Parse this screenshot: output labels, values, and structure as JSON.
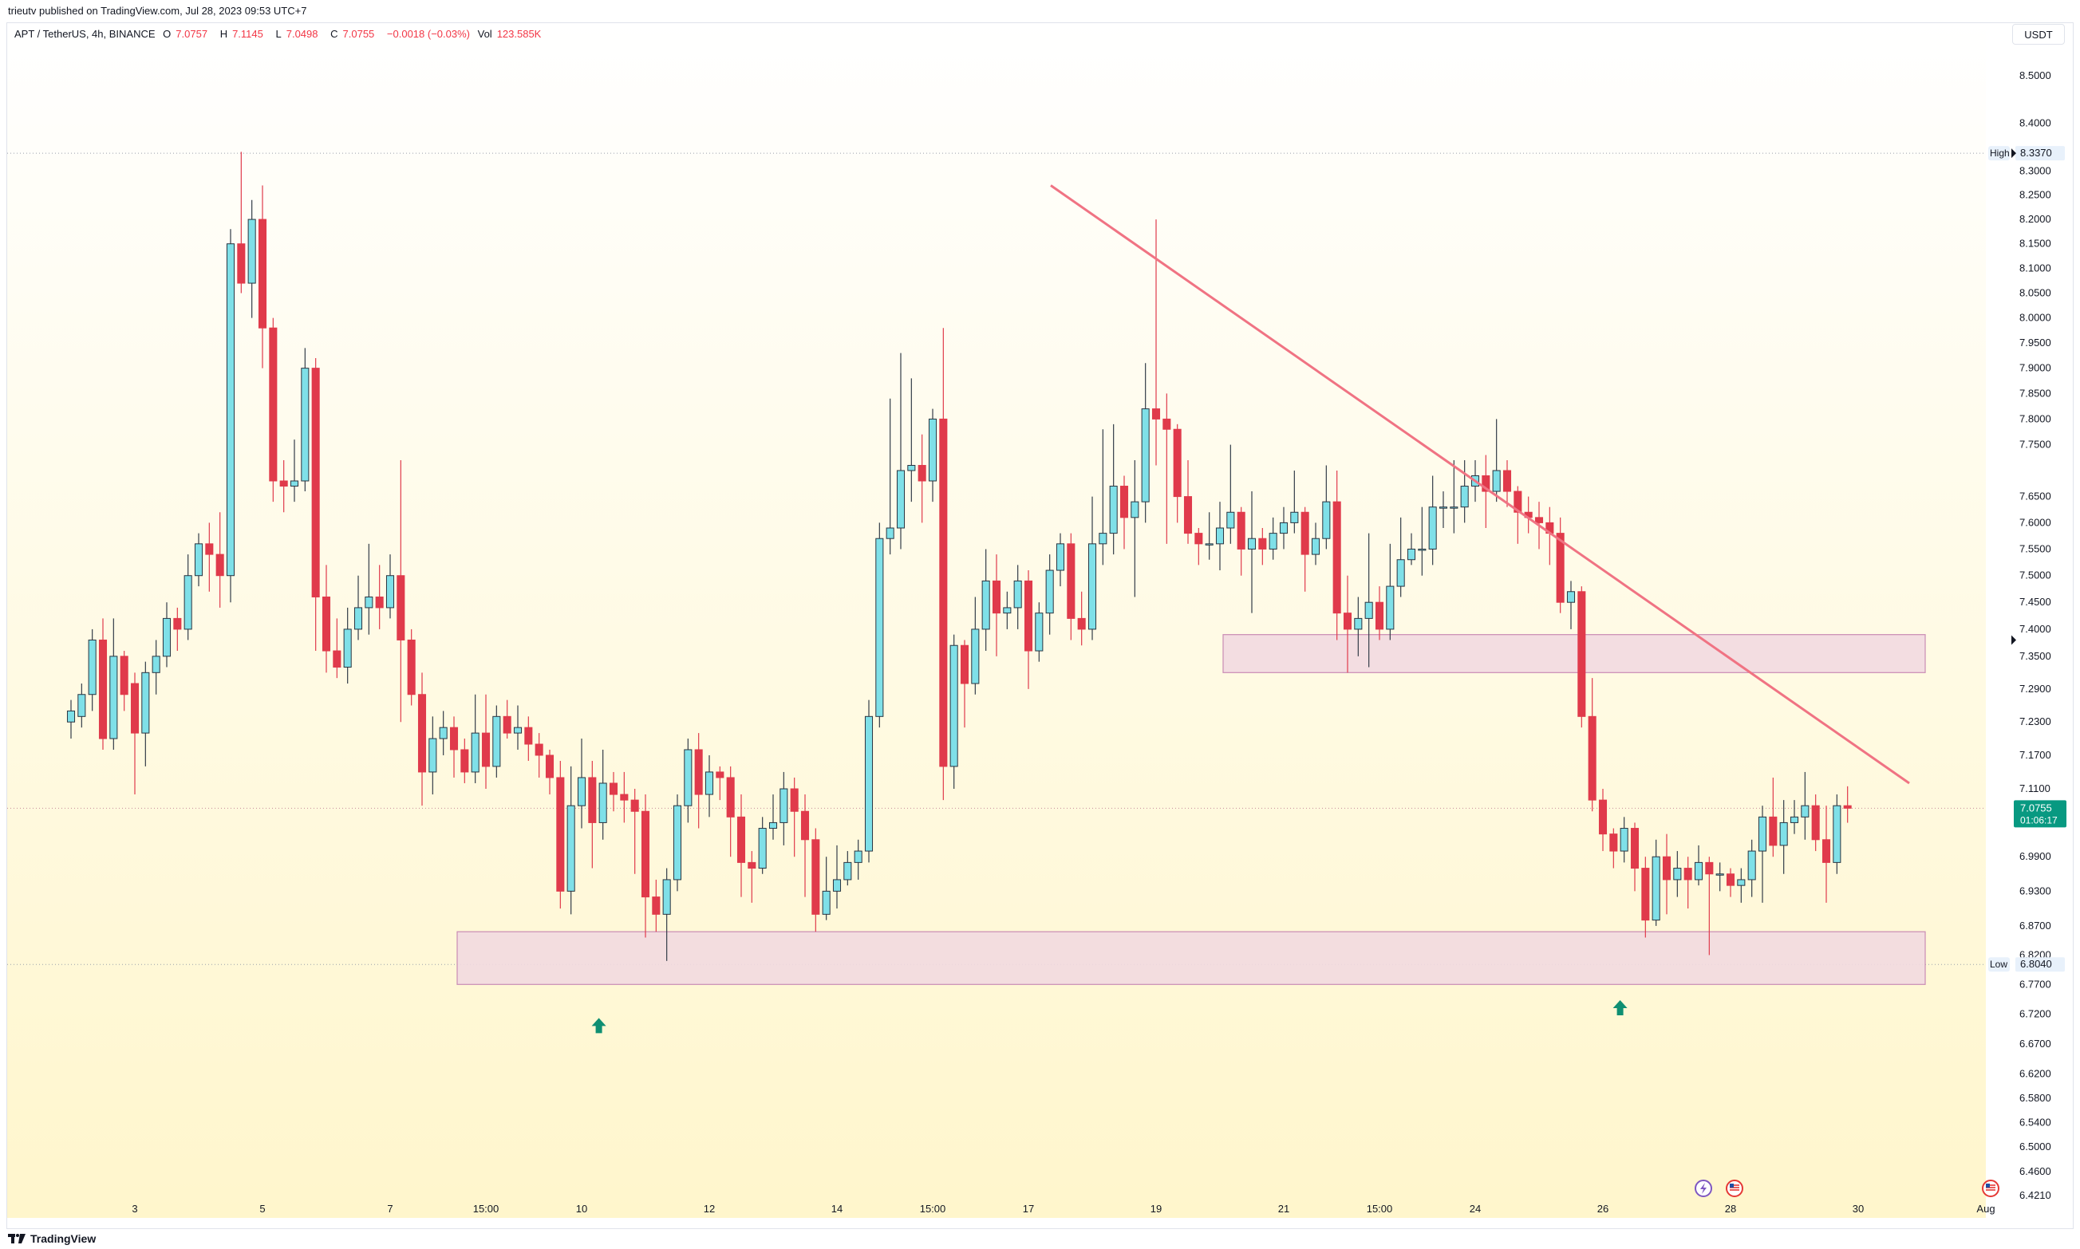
{
  "header": {
    "published": "trieutv published on TradingView.com, Jul 28, 2023 09:53 UTC+7"
  },
  "legend": {
    "symbol": "APT / TetherUS, 4h, BINANCE",
    "open_label": "O",
    "open": "7.0757",
    "high_label": "H",
    "high": "7.1145",
    "low_label": "L",
    "low": "7.0498",
    "close_label": "C",
    "close": "7.0755",
    "change": "−0.0018 (−0.03%)",
    "vol_label": "Vol",
    "vol": "123.585K"
  },
  "price_axis": {
    "currency_button": "USDT",
    "ticks": [
      "8.5000",
      "8.4000",
      "8.3000",
      "8.2500",
      "8.2000",
      "8.1500",
      "8.1000",
      "8.0500",
      "8.0000",
      "7.9500",
      "7.9000",
      "7.8500",
      "7.8000",
      "7.7500",
      "7.6500",
      "7.6000",
      "7.5500",
      "7.5000",
      "7.4500",
      "7.4000",
      "7.3500",
      "7.2900",
      "7.2300",
      "7.1700",
      "7.1100",
      "6.9900",
      "6.9300",
      "6.8700",
      "6.8200",
      "6.7700",
      "6.7200",
      "6.6700",
      "6.6200",
      "6.5800",
      "6.5400",
      "6.5000",
      "6.4600",
      "6.4210"
    ],
    "high_marker": {
      "label": "High",
      "value": "8.3370"
    },
    "low_marker": {
      "label": "Low",
      "value": "6.8040"
    },
    "last_price": {
      "value": "7.0755",
      "countdown": "01:06:17"
    }
  },
  "time_axis": {
    "ticks": [
      "3",
      "5",
      "7",
      "15:00",
      "10",
      "12",
      "14",
      "15:00",
      "17",
      "19",
      "21",
      "15:00",
      "24",
      "26",
      "28",
      "30",
      "Aug"
    ]
  },
  "footer": {
    "brand": "TradingView"
  },
  "colors": {
    "up": "#7fe0e8",
    "down": "#e03a4b",
    "trendline": "#f07383",
    "zone_fill": "#f2d9e0",
    "zone_stroke": "#c98bb4",
    "signal_arrow": "#0f8f72",
    "last_price_bg": "#089981",
    "bg_top": "#ffffff",
    "bg_bottom": "#fff6cc"
  },
  "chart_data": {
    "type": "candlestick",
    "symbol": "APT / TetherUS",
    "interval": "4h",
    "exchange": "BINANCE",
    "y_scale": "log",
    "ylim": [
      6.42,
      8.56
    ],
    "x_dates": [
      "Jul 2",
      "Jul 3",
      "Jul 4",
      "Jul 5",
      "Jul 6",
      "Jul 7",
      "Jul 8",
      "Jul 9",
      "Jul 10",
      "Jul 11",
      "Jul 12",
      "Jul 13",
      "Jul 14",
      "Jul 15",
      "Jul 16",
      "Jul 17",
      "Jul 18",
      "Jul 19",
      "Jul 20",
      "Jul 21",
      "Jul 22",
      "Jul 23",
      "Jul 24",
      "Jul 25",
      "Jul 26",
      "Jul 27",
      "Jul 28",
      "Jul 29",
      "Jul 30",
      "Jul 31",
      "Aug 1"
    ],
    "candles": [
      [
        7.23,
        7.25,
        7.2,
        7.27
      ],
      [
        7.24,
        7.28,
        7.22,
        7.3
      ],
      [
        7.28,
        7.38,
        7.25,
        7.4
      ],
      [
        7.38,
        7.2,
        7.18,
        7.42
      ],
      [
        7.2,
        7.35,
        7.18,
        7.42
      ],
      [
        7.35,
        7.28,
        7.25,
        7.36
      ],
      [
        7.3,
        7.21,
        7.1,
        7.32
      ],
      [
        7.21,
        7.32,
        7.15,
        7.34
      ],
      [
        7.32,
        7.35,
        7.28,
        7.38
      ],
      [
        7.35,
        7.42,
        7.33,
        7.45
      ],
      [
        7.42,
        7.4,
        7.36,
        7.44
      ],
      [
        7.4,
        7.5,
        7.38,
        7.54
      ],
      [
        7.5,
        7.56,
        7.48,
        7.58
      ],
      [
        7.56,
        7.54,
        7.47,
        7.6
      ],
      [
        7.54,
        7.5,
        7.44,
        7.62
      ],
      [
        7.5,
        8.15,
        7.45,
        8.18
      ],
      [
        8.15,
        8.07,
        8.05,
        8.34
      ],
      [
        8.07,
        8.2,
        8.0,
        8.24
      ],
      [
        8.2,
        7.98,
        7.9,
        8.27
      ],
      [
        7.98,
        7.68,
        7.64,
        8.0
      ],
      [
        7.68,
        7.67,
        7.62,
        7.72
      ],
      [
        7.67,
        7.68,
        7.64,
        7.76
      ],
      [
        7.68,
        7.9,
        7.66,
        7.94
      ],
      [
        7.9,
        7.46,
        7.36,
        7.92
      ],
      [
        7.46,
        7.36,
        7.32,
        7.52
      ],
      [
        7.36,
        7.33,
        7.31,
        7.42
      ],
      [
        7.33,
        7.4,
        7.3,
        7.44
      ],
      [
        7.4,
        7.44,
        7.38,
        7.5
      ],
      [
        7.44,
        7.46,
        7.39,
        7.56
      ],
      [
        7.46,
        7.44,
        7.4,
        7.52
      ],
      [
        7.44,
        7.5,
        7.42,
        7.54
      ],
      [
        7.5,
        7.38,
        7.23,
        7.72
      ],
      [
        7.38,
        7.28,
        7.26,
        7.4
      ],
      [
        7.28,
        7.14,
        7.08,
        7.32
      ],
      [
        7.14,
        7.2,
        7.1,
        7.24
      ],
      [
        7.2,
        7.22,
        7.17,
        7.25
      ],
      [
        7.22,
        7.18,
        7.13,
        7.24
      ],
      [
        7.18,
        7.14,
        7.12,
        7.2
      ],
      [
        7.14,
        7.21,
        7.12,
        7.28
      ],
      [
        7.21,
        7.15,
        7.11,
        7.28
      ],
      [
        7.15,
        7.24,
        7.13,
        7.26
      ],
      [
        7.24,
        7.21,
        7.2,
        7.27
      ],
      [
        7.21,
        7.22,
        7.18,
        7.26
      ],
      [
        7.22,
        7.19,
        7.16,
        7.24
      ],
      [
        7.19,
        7.17,
        7.13,
        7.21
      ],
      [
        7.17,
        7.13,
        7.1,
        7.18
      ],
      [
        7.13,
        6.93,
        6.9,
        7.16
      ],
      [
        6.93,
        7.08,
        6.89,
        7.15
      ],
      [
        7.08,
        7.13,
        7.04,
        7.2
      ],
      [
        7.13,
        7.05,
        6.97,
        7.16
      ],
      [
        7.05,
        7.12,
        7.02,
        7.18
      ],
      [
        7.12,
        7.1,
        7.07,
        7.14
      ],
      [
        7.1,
        7.09,
        7.05,
        7.14
      ],
      [
        7.09,
        7.07,
        6.96,
        7.11
      ],
      [
        7.07,
        6.92,
        6.85,
        7.1
      ],
      [
        6.92,
        6.89,
        6.86,
        6.95
      ],
      [
        6.89,
        6.95,
        6.81,
        6.97
      ],
      [
        6.95,
        7.08,
        6.93,
        7.1
      ],
      [
        7.08,
        7.18,
        7.05,
        7.2
      ],
      [
        7.18,
        7.1,
        7.04,
        7.21
      ],
      [
        7.1,
        7.14,
        7.06,
        7.17
      ],
      [
        7.14,
        7.13,
        7.09,
        7.15
      ],
      [
        7.13,
        7.06,
        6.99,
        7.15
      ],
      [
        7.06,
        6.98,
        6.92,
        7.1
      ],
      [
        6.98,
        6.97,
        6.91,
        7.0
      ],
      [
        6.97,
        7.04,
        6.96,
        7.06
      ],
      [
        7.04,
        7.05,
        7.02,
        7.1
      ],
      [
        7.05,
        7.11,
        7.01,
        7.14
      ],
      [
        7.11,
        7.07,
        6.99,
        7.13
      ],
      [
        7.07,
        7.02,
        6.92,
        7.1
      ],
      [
        7.02,
        6.89,
        6.86,
        7.04
      ],
      [
        6.89,
        6.93,
        6.88,
        6.99
      ],
      [
        6.93,
        6.95,
        6.9,
        7.01
      ],
      [
        6.95,
        6.98,
        6.94,
        7.0
      ],
      [
        6.98,
        7.0,
        6.95,
        7.02
      ],
      [
        7.0,
        7.24,
        6.98,
        7.27
      ],
      [
        7.24,
        7.57,
        7.22,
        7.6
      ],
      [
        7.57,
        7.59,
        7.54,
        7.84
      ],
      [
        7.59,
        7.7,
        7.55,
        7.93
      ],
      [
        7.7,
        7.71,
        7.64,
        7.88
      ],
      [
        7.71,
        7.68,
        7.6,
        7.77
      ],
      [
        7.68,
        7.8,
        7.64,
        7.82
      ],
      [
        7.8,
        7.15,
        7.09,
        7.98
      ],
      [
        7.15,
        7.37,
        7.11,
        7.39
      ],
      [
        7.37,
        7.3,
        7.22,
        7.38
      ],
      [
        7.3,
        7.4,
        7.28,
        7.46
      ],
      [
        7.4,
        7.49,
        7.36,
        7.55
      ],
      [
        7.49,
        7.43,
        7.35,
        7.54
      ],
      [
        7.43,
        7.44,
        7.4,
        7.47
      ],
      [
        7.44,
        7.49,
        7.4,
        7.52
      ],
      [
        7.49,
        7.36,
        7.29,
        7.51
      ],
      [
        7.36,
        7.43,
        7.34,
        7.45
      ],
      [
        7.43,
        7.51,
        7.39,
        7.54
      ],
      [
        7.51,
        7.56,
        7.48,
        7.58
      ],
      [
        7.56,
        7.42,
        7.38,
        7.58
      ],
      [
        7.42,
        7.4,
        7.37,
        7.47
      ],
      [
        7.4,
        7.56,
        7.38,
        7.65
      ],
      [
        7.56,
        7.58,
        7.52,
        7.78
      ],
      [
        7.58,
        7.67,
        7.54,
        7.79
      ],
      [
        7.67,
        7.61,
        7.55,
        7.69
      ],
      [
        7.61,
        7.64,
        7.46,
        7.72
      ],
      [
        7.64,
        7.82,
        7.6,
        7.91
      ],
      [
        7.82,
        7.8,
        7.71,
        8.2
      ],
      [
        7.8,
        7.78,
        7.56,
        7.85
      ],
      [
        7.78,
        7.65,
        7.6,
        7.79
      ],
      [
        7.65,
        7.58,
        7.56,
        7.72
      ],
      [
        7.58,
        7.56,
        7.52,
        7.59
      ],
      [
        7.56,
        7.56,
        7.53,
        7.62
      ],
      [
        7.56,
        7.59,
        7.51,
        7.64
      ],
      [
        7.59,
        7.62,
        7.56,
        7.75
      ],
      [
        7.62,
        7.55,
        7.5,
        7.63
      ],
      [
        7.55,
        7.57,
        7.43,
        7.66
      ],
      [
        7.57,
        7.55,
        7.52,
        7.59
      ],
      [
        7.55,
        7.58,
        7.53,
        7.61
      ],
      [
        7.58,
        7.6,
        7.55,
        7.63
      ],
      [
        7.6,
        7.62,
        7.58,
        7.7
      ],
      [
        7.62,
        7.54,
        7.47,
        7.63
      ],
      [
        7.54,
        7.57,
        7.52,
        7.6
      ],
      [
        7.57,
        7.64,
        7.55,
        7.71
      ],
      [
        7.64,
        7.43,
        7.38,
        7.7
      ],
      [
        7.43,
        7.4,
        7.32,
        7.5
      ],
      [
        7.4,
        7.42,
        7.35,
        7.46
      ],
      [
        7.42,
        7.45,
        7.33,
        7.58
      ],
      [
        7.45,
        7.4,
        7.38,
        7.48
      ],
      [
        7.4,
        7.48,
        7.38,
        7.56
      ],
      [
        7.48,
        7.53,
        7.46,
        7.61
      ],
      [
        7.53,
        7.55,
        7.52,
        7.58
      ],
      [
        7.55,
        7.55,
        7.5,
        7.63
      ],
      [
        7.55,
        7.63,
        7.52,
        7.69
      ],
      [
        7.63,
        7.63,
        7.59,
        7.66
      ],
      [
        7.63,
        7.63,
        7.58,
        7.72
      ],
      [
        7.63,
        7.67,
        7.6,
        7.72
      ],
      [
        7.67,
        7.69,
        7.64,
        7.72
      ],
      [
        7.69,
        7.66,
        7.59,
        7.73
      ],
      [
        7.66,
        7.7,
        7.64,
        7.8
      ],
      [
        7.7,
        7.66,
        7.63,
        7.72
      ],
      [
        7.66,
        7.62,
        7.56,
        7.67
      ],
      [
        7.62,
        7.61,
        7.58,
        7.65
      ],
      [
        7.61,
        7.6,
        7.55,
        7.64
      ],
      [
        7.6,
        7.58,
        7.52,
        7.63
      ],
      [
        7.58,
        7.45,
        7.43,
        7.61
      ],
      [
        7.45,
        7.47,
        7.4,
        7.49
      ],
      [
        7.47,
        7.24,
        7.22,
        7.48
      ],
      [
        7.24,
        7.09,
        7.07,
        7.31
      ],
      [
        7.09,
        7.03,
        7.0,
        7.11
      ],
      [
        7.03,
        7.0,
        6.97,
        7.04
      ],
      [
        7.0,
        7.04,
        6.98,
        7.06
      ],
      [
        7.04,
        6.97,
        6.93,
        7.05
      ],
      [
        6.97,
        6.88,
        6.85,
        6.99
      ],
      [
        6.88,
        6.99,
        6.87,
        7.02
      ],
      [
        6.99,
        6.95,
        6.89,
        7.03
      ],
      [
        6.95,
        6.97,
        6.92,
        7.0
      ],
      [
        6.97,
        6.95,
        6.9,
        6.99
      ],
      [
        6.95,
        6.98,
        6.94,
        7.01
      ],
      [
        6.98,
        6.96,
        6.82,
        6.99
      ],
      [
        6.96,
        6.96,
        6.93,
        6.98
      ],
      [
        6.96,
        6.94,
        6.92,
        6.97
      ],
      [
        6.94,
        6.95,
        6.91,
        6.97
      ],
      [
        6.95,
        7.0,
        6.92,
        7.02
      ],
      [
        7.0,
        7.06,
        6.91,
        7.08
      ],
      [
        7.06,
        7.01,
        6.99,
        7.13
      ],
      [
        7.01,
        7.05,
        6.96,
        7.09
      ],
      [
        7.05,
        7.06,
        7.03,
        7.09
      ],
      [
        7.06,
        7.08,
        7.02,
        7.14
      ],
      [
        7.08,
        7.02,
        7.0,
        7.1
      ],
      [
        7.02,
        6.98,
        6.91,
        7.08
      ],
      [
        6.98,
        7.08,
        6.96,
        7.1
      ],
      [
        7.08,
        7.0755,
        7.0498,
        7.1145
      ]
    ],
    "trendline": {
      "from": {
        "date": "Jul 17",
        "price": 8.27
      },
      "to": {
        "date": "Jul 30",
        "price": 7.12
      }
    },
    "zones": [
      {
        "name": "resistance",
        "from": "Jul 20",
        "to": "Jul 31",
        "top": 7.39,
        "bottom": 7.32
      },
      {
        "name": "support",
        "from": "Jul 8",
        "to": "Jul 31",
        "top": 6.86,
        "bottom": 6.77
      }
    ],
    "signal_arrows": [
      {
        "date": "Jul 10",
        "price": 6.7
      },
      {
        "date": "Jul 26",
        "price": 6.73
      }
    ],
    "high": 8.337,
    "low": 6.804,
    "last": 7.0755
  }
}
